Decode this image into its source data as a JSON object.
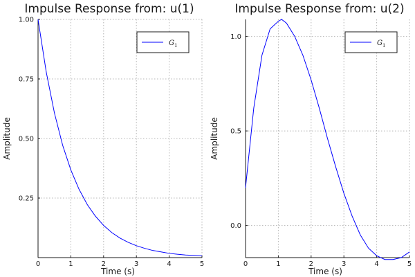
{
  "chart_data": [
    {
      "type": "line",
      "title": "Impulse Response from: u(1)",
      "xlabel": "Time (s)",
      "ylabel": "Amplitude",
      "xlim": [
        0,
        5
      ],
      "ylim": [
        0,
        1.0
      ],
      "xticks": [
        0,
        1,
        2,
        3,
        4,
        5
      ],
      "xtick_labels": [
        "0",
        "1",
        "2",
        "3",
        "4",
        "5"
      ],
      "yticks": [
        0.25,
        0.5,
        0.75,
        1.0
      ],
      "ytick_labels": [
        "0.25",
        "0.50",
        "0.75",
        "1.00"
      ],
      "grid": true,
      "legend_position": "top-right",
      "color": "#0000ff",
      "series": [
        {
          "name": "G_1",
          "x": [
            0,
            0.25,
            0.5,
            0.75,
            1.0,
            1.25,
            1.5,
            1.75,
            2.0,
            2.25,
            2.5,
            2.75,
            3.0,
            3.25,
            3.5,
            3.75,
            4.0,
            4.25,
            4.5,
            4.75,
            5.0
          ],
          "y": [
            1.0,
            0.779,
            0.607,
            0.472,
            0.368,
            0.287,
            0.223,
            0.174,
            0.135,
            0.105,
            0.082,
            0.064,
            0.05,
            0.039,
            0.03,
            0.024,
            0.018,
            0.014,
            0.011,
            0.009,
            0.007
          ]
        }
      ]
    },
    {
      "type": "line",
      "title": "Impulse Response from: u(2)",
      "xlabel": "Time (s)",
      "ylabel": "Amplitude",
      "xlim": [
        0,
        5
      ],
      "ylim": [
        -0.17,
        1.09
      ],
      "xticks": [
        0,
        1,
        2,
        3,
        4,
        5
      ],
      "xtick_labels": [
        "0",
        "1",
        "2",
        "3",
        "4",
        "5"
      ],
      "yticks": [
        0.0,
        0.5,
        1.0
      ],
      "ytick_labels": [
        "0.0",
        "0.5",
        "1.0"
      ],
      "grid": true,
      "legend_position": "top-right",
      "color": "#0000ff",
      "series": [
        {
          "name": "G_1",
          "x": [
            0,
            0.25,
            0.5,
            0.75,
            1.0,
            1.1,
            1.25,
            1.5,
            1.75,
            2.0,
            2.25,
            2.5,
            2.75,
            3.0,
            3.25,
            3.5,
            3.75,
            4.0,
            4.25,
            4.5,
            4.75,
            5.0
          ],
          "y": [
            0.2,
            0.62,
            0.9,
            1.04,
            1.08,
            1.09,
            1.07,
            1.0,
            0.9,
            0.77,
            0.62,
            0.46,
            0.31,
            0.17,
            0.05,
            -0.05,
            -0.12,
            -0.16,
            -0.18,
            -0.18,
            -0.17,
            -0.14
          ]
        }
      ]
    }
  ]
}
